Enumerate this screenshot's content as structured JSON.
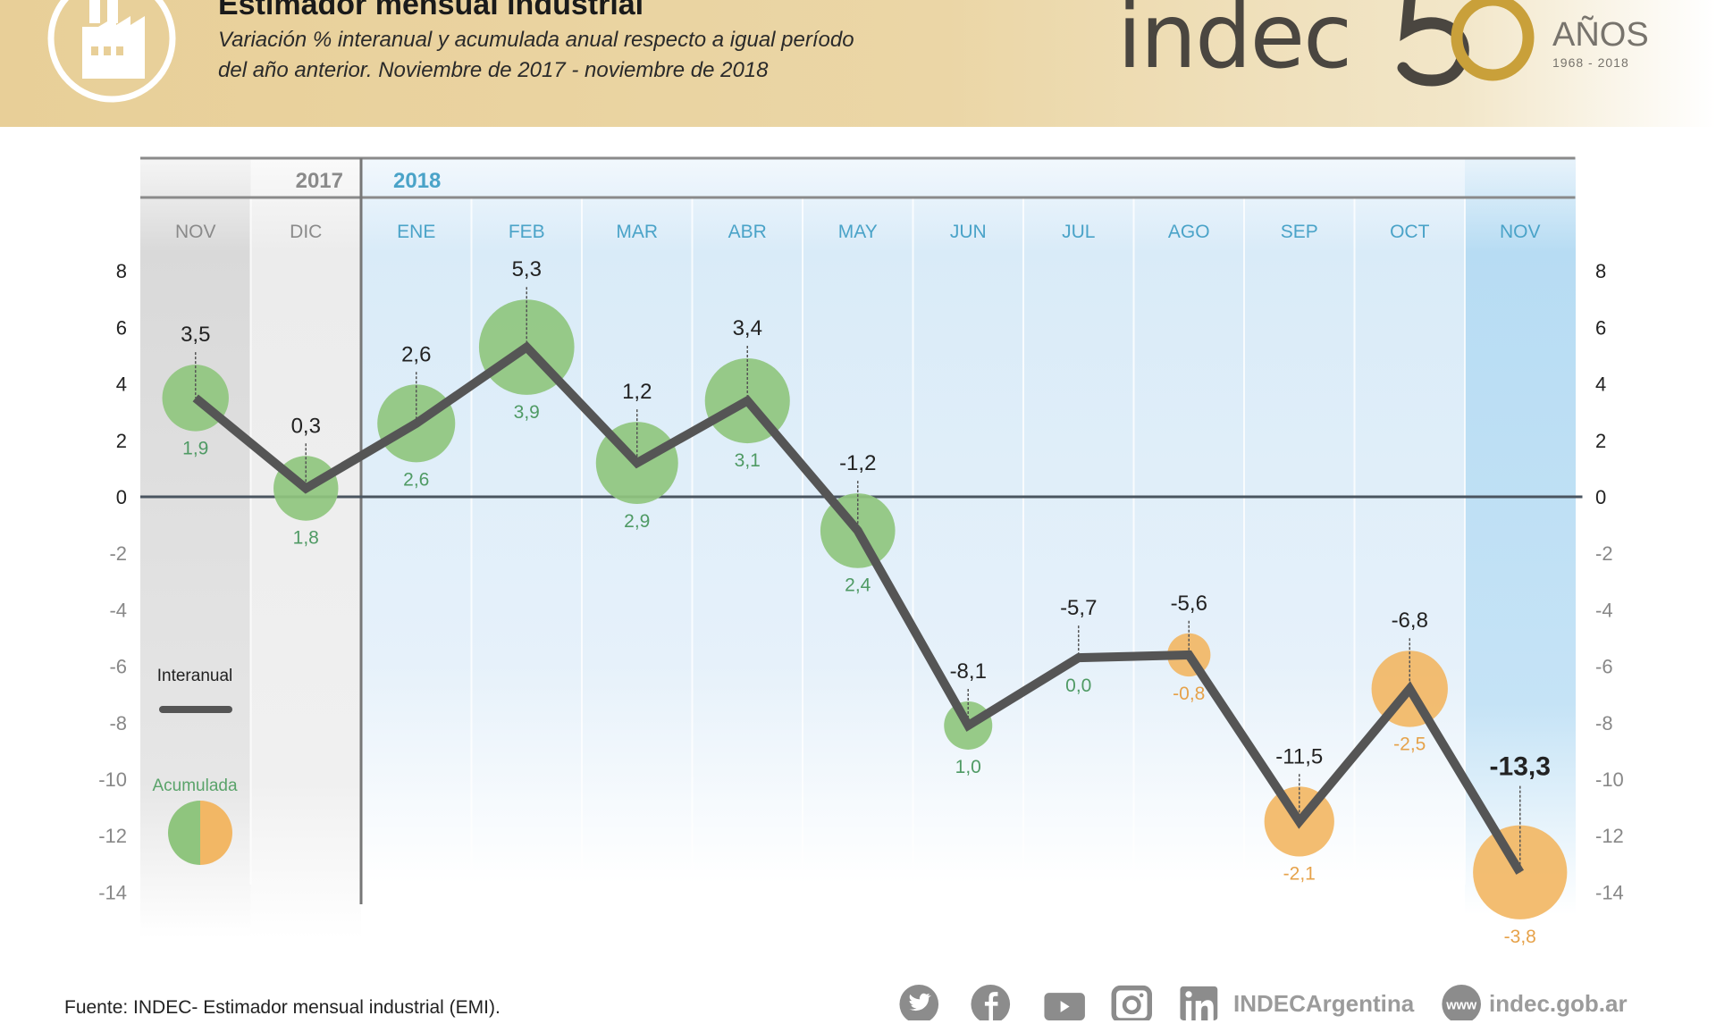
{
  "header": {
    "title": "Estimador mensual industrial",
    "subtitle_line1": "Variación % interanual y acumulada anual respecto a igual período",
    "subtitle_line2": "del año anterior. Noviembre de 2017 - noviembre de 2018",
    "icon": "factory-icon",
    "logo_text": "indec",
    "logo_number": "50",
    "logo_anos": "AÑOS",
    "logo_years": "1968 - 2018"
  },
  "colors": {
    "header_bg": "#e8cf98",
    "positive_bubble": "#8fc57e",
    "negative_bubble": "#f2b765",
    "line": "#555555",
    "month_2018": "#4aa3c8",
    "month_2017": "#8a8a8a",
    "acum_positive_text": "#4f9a64",
    "acum_negative_text": "#e6a24a"
  },
  "chart_data": {
    "type": "line",
    "title": "Estimador mensual industrial",
    "years": [
      {
        "label": "2017",
        "months": 2
      },
      {
        "label": "2018",
        "months": 11
      }
    ],
    "categories": [
      "NOV",
      "DIC",
      "ENE",
      "FEB",
      "MAR",
      "ABR",
      "MAY",
      "JUN",
      "JUL",
      "AGO",
      "SEP",
      "OCT",
      "NOV"
    ],
    "series": [
      {
        "name": "Interanual",
        "type": "line",
        "values": [
          3.5,
          0.3,
          2.6,
          5.3,
          1.2,
          3.4,
          -1.2,
          -8.1,
          -5.7,
          -5.6,
          -11.5,
          -6.8,
          -13.3
        ],
        "labels": [
          "3,5",
          "0,3",
          "2,6",
          "5,3",
          "1,2",
          "3,4",
          "-1,2",
          "-8,1",
          "-5,7",
          "-5,6",
          "-11,5",
          "-6,8",
          "-13,3"
        ]
      },
      {
        "name": "Acumulada",
        "type": "bubble",
        "values": [
          1.9,
          1.8,
          2.6,
          3.9,
          2.9,
          3.1,
          2.4,
          1.0,
          0.0,
          -0.8,
          -2.1,
          -2.5,
          -3.8
        ],
        "labels": [
          "1,9",
          "1,8",
          "2,6",
          "3,9",
          "2,9",
          "3,1",
          "2,4",
          "1,0",
          "0,0",
          "-0,8",
          "-2,1",
          "-2,5",
          "-3,8"
        ]
      }
    ],
    "ylim": [
      -14,
      8
    ],
    "yticks": [
      8,
      6,
      4,
      2,
      0,
      -2,
      -4,
      -6,
      -8,
      -10,
      -12,
      -14
    ],
    "ytick_labels": [
      "8",
      "6",
      "4",
      "2",
      "0",
      "-2",
      "-4",
      "-6",
      "-8",
      "-10",
      "-12",
      "-14"
    ],
    "legend": {
      "position": "left",
      "line_label": "Interanual",
      "bubble_label": "Acumulada"
    },
    "highlight_last": true
  },
  "footer": {
    "source": "Fuente: INDEC- Estimador mensual industrial (EMI).",
    "social_icons": [
      "twitter-icon",
      "facebook-icon",
      "youtube-icon",
      "instagram-icon",
      "linkedin-icon"
    ],
    "handle": "INDECArgentina",
    "web_icon_text": "www",
    "website": "indec.gob.ar"
  }
}
